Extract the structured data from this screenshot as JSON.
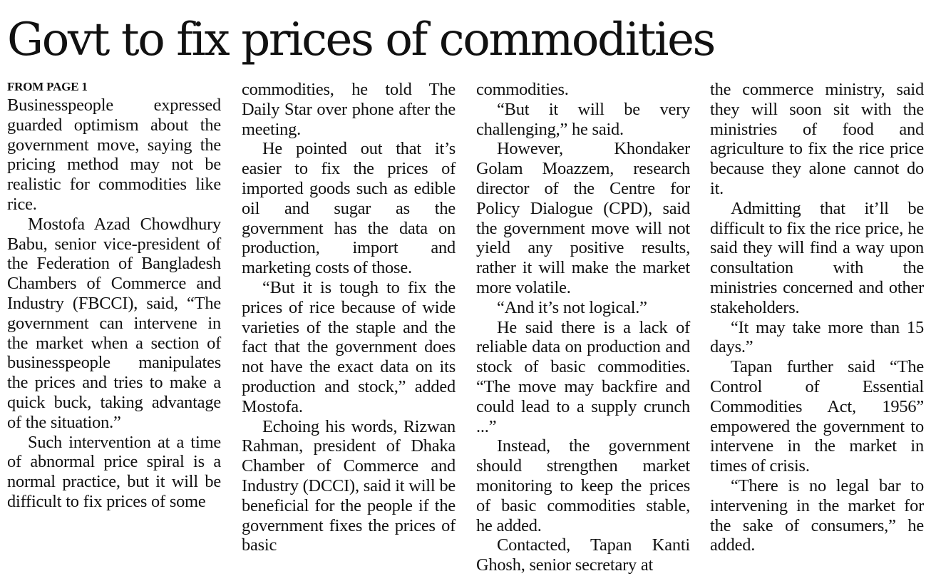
{
  "headline": "Govt to fix prices of commodities",
  "kicker": "FROM PAGE 1",
  "columns": [
    {
      "paragraphs": [
        "Businesspeople expressed guarded optimism about the government move, saying the pricing method may not be realistic for commodities like rice.",
        "Mostofa Azad Chowdhury Babu, senior vice-president of the Federation of Bangladesh Chambers of Commerce and Industry (FBCCI), said, “The government can intervene in the market when a section of businesspeople manipulates the prices and tries to make a quick buck, taking advantage of the situation.”",
        "Such intervention at a time of abnormal price spiral is a normal practice, but it will be difficult to fix prices of some"
      ]
    },
    {
      "paragraphs": [
        "commodities, he told The Daily Star over phone after the meeting.",
        "He pointed out that it’s easier to fix the prices of imported goods such as edible oil and sugar as the government has the data on production, import and marketing costs of those.",
        "“But it is tough to fix the prices of rice because of wide varieties of the staple and the fact that the government does not have the exact data on its production and stock,” added Mostofa.",
        "Echoing his words, Rizwan Rahman, president of Dhaka Chamber of Commerce and Industry (DCCI), said it will be beneficial for the people if the government fixes the prices of basic"
      ]
    },
    {
      "paragraphs": [
        "commodities.",
        "“But it will be very challenging,” he said.",
        "However, Khondaker Golam Moazzem, research director of the Centre for Policy Dialogue (CPD), said the government move will not yield any positive results, rather it will make the market more volatile.",
        "“And it’s not logical.”",
        "He said there is a lack of reliable data on production and stock of basic commodities. “The move may backfire and could lead to a supply crunch ...”",
        "Instead, the government should strengthen market monitoring to keep the prices of basic commodities stable, he added.",
        "Contacted, Tapan Kanti Ghosh, senior secretary at"
      ]
    },
    {
      "paragraphs": [
        "the commerce ministry, said they will soon sit with the ministries of food and agriculture to fix the rice price because they alone cannot do it.",
        "Admitting that it’ll be difficult to fix the rice price, he said they will find a way upon consultation with the ministries concerned and other stakeholders.",
        "“It may take more than 15 days.”",
        "Tapan further said “The Control of Essential Commodities Act, 1956” empowered the government to intervene in the market in times of crisis.",
        "“There is no legal bar to intervening in the market for the sake of consumers,” he added."
      ]
    }
  ]
}
